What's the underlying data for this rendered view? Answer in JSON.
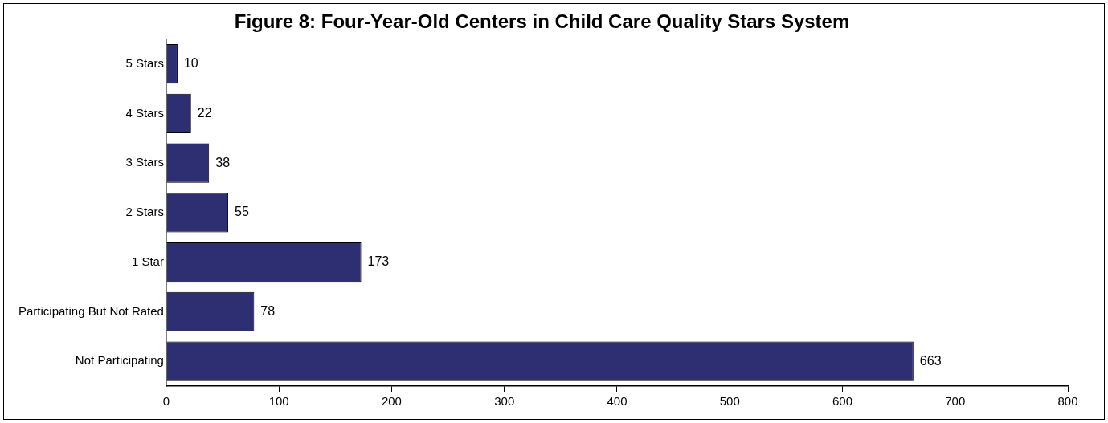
{
  "chart_data": {
    "type": "bar",
    "orientation": "horizontal",
    "title": "Figure 8: Four-Year-Old Centers in Child Care Quality Stars System",
    "categories": [
      "5 Stars",
      "4 Stars",
      "3 Stars",
      "2 Stars",
      "1 Star",
      "Participating But Not Rated",
      "Not Participating"
    ],
    "values": [
      10,
      22,
      38,
      55,
      173,
      78,
      663
    ],
    "color": "#2e2e72",
    "xlim": [
      0,
      800
    ],
    "xticks": [
      0,
      100,
      200,
      300,
      400,
      500,
      600,
      700,
      800
    ],
    "data_labels": true,
    "legend": false
  }
}
